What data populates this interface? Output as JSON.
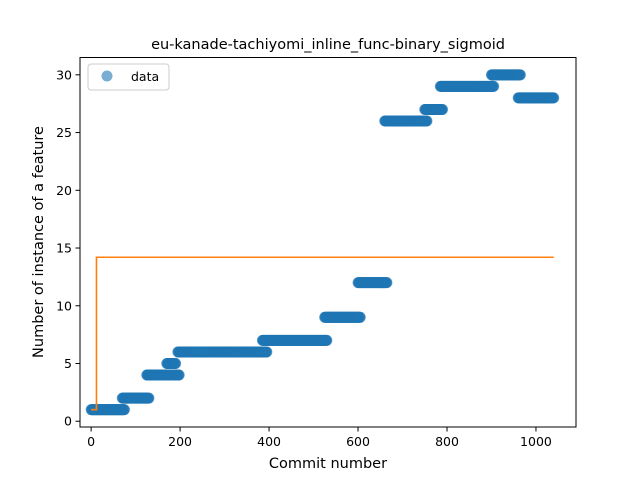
{
  "chart_data": {
    "type": "scatter",
    "title": "eu-kanade-tachiyomi_inline_func-binary_sigmoid",
    "xlabel": "Commit number",
    "ylabel": "Number of instance of a feature",
    "xlim": [
      -25,
      1090
    ],
    "ylim": [
      -0.5,
      31.5
    ],
    "xticks": [
      0,
      200,
      400,
      600,
      800,
      1000
    ],
    "yticks": [
      0,
      5,
      10,
      15,
      20,
      25,
      30
    ],
    "grid": false,
    "legend": {
      "placement": "top-left",
      "entries": [
        "data"
      ]
    },
    "series": [
      {
        "name": "data",
        "kind": "scatter",
        "color": "#1f77b4",
        "segments": [
          {
            "x_start": 0,
            "x_end": 75,
            "y": 1
          },
          {
            "x_start": 70,
            "x_end": 130,
            "y": 2
          },
          {
            "x_start": 125,
            "x_end": 180,
            "y": 4
          },
          {
            "x_start": 170,
            "x_end": 190,
            "y": 5
          },
          {
            "x_start": 185,
            "x_end": 198,
            "y": 4
          },
          {
            "x_start": 195,
            "x_end": 395,
            "y": 6
          },
          {
            "x_start": 385,
            "x_end": 530,
            "y": 7
          },
          {
            "x_start": 525,
            "x_end": 605,
            "y": 9
          },
          {
            "x_start": 600,
            "x_end": 665,
            "y": 12
          },
          {
            "x_start": 660,
            "x_end": 755,
            "y": 26
          },
          {
            "x_start": 750,
            "x_end": 790,
            "y": 27
          },
          {
            "x_start": 785,
            "x_end": 905,
            "y": 29
          },
          {
            "x_start": 900,
            "x_end": 965,
            "y": 30
          },
          {
            "x_start": 960,
            "x_end": 1040,
            "y": 28
          }
        ]
      },
      {
        "kind": "line",
        "color": "#ff7f0e",
        "points": [
          [
            0,
            1
          ],
          [
            12,
            1
          ],
          [
            12,
            14.2
          ],
          [
            1040,
            14.2
          ]
        ]
      }
    ]
  }
}
